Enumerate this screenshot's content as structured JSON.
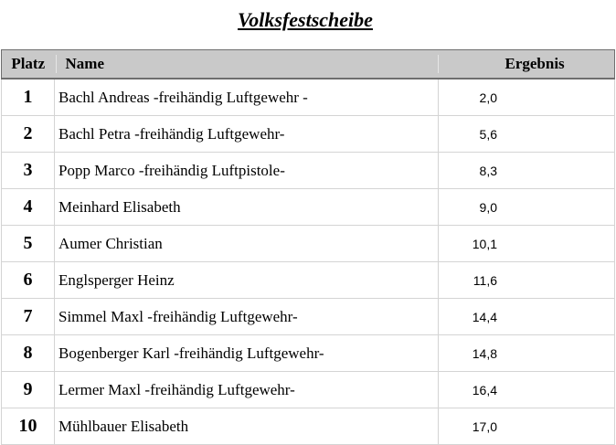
{
  "document": {
    "title": "Volksfestscheibe"
  },
  "table": {
    "headers": {
      "platz": "Platz",
      "name": "Name",
      "ergebnis": "Ergebnis"
    },
    "rows": [
      {
        "platz": "1",
        "name": "Bachl Andreas -freihändig Luftgewehr -",
        "ergebnis": "2,0"
      },
      {
        "platz": "2",
        "name": "Bachl Petra -freihändig Luftgewehr-",
        "ergebnis": "5,6"
      },
      {
        "platz": "3",
        "name": "Popp Marco -freihändig Luftpistole-",
        "ergebnis": "8,3"
      },
      {
        "platz": "4",
        "name": "Meinhard Elisabeth",
        "ergebnis": "9,0"
      },
      {
        "platz": "5",
        "name": "Aumer Christian",
        "ergebnis": "10,1"
      },
      {
        "platz": "6",
        "name": "Englsperger Heinz",
        "ergebnis": "11,6"
      },
      {
        "platz": "7",
        "name": "Simmel Maxl -freihändig Luftgewehr-",
        "ergebnis": "14,4"
      },
      {
        "platz": "8",
        "name": "Bogenberger Karl -freihändig Luftgewehr-",
        "ergebnis": "14,8"
      },
      {
        "platz": "9",
        "name": "Lermer Maxl -freihändig Luftgewehr-",
        "ergebnis": "16,4"
      },
      {
        "platz": "10",
        "name": "Mühlbauer Elisabeth",
        "ergebnis": "17,0"
      }
    ]
  },
  "colors": {
    "header_background": "#c9c9c9",
    "grid_line": "#d4d4d4"
  }
}
